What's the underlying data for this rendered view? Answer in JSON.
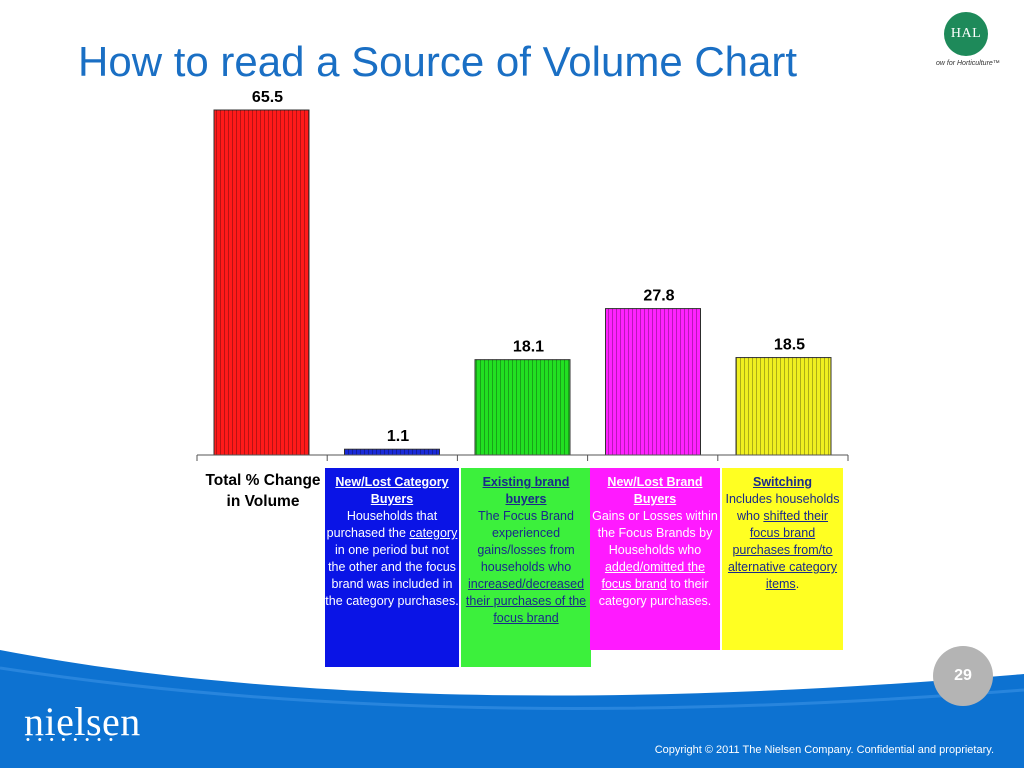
{
  "title": "How to read a Source of Volume Chart",
  "logo": {
    "name": "HAL",
    "tagline": "ow for Horticulture™",
    "color": "#1e8a5a"
  },
  "chart_data": {
    "type": "bar",
    "categories": [
      "Total % Change in Volume",
      "New/Lost Category Buyers",
      "Existing brand buyers",
      "New/Lost Brand Buyers",
      "Switching"
    ],
    "values": [
      65.5,
      1.1,
      18.1,
      27.8,
      18.5
    ],
    "value_labels": [
      "65.5",
      "1.1",
      "18.1",
      "27.8",
      "18.5"
    ],
    "colors": [
      "#ff1a1a",
      "#1a2ad8",
      "#22e022",
      "#ff22ff",
      "#f0f020"
    ],
    "ylim": [
      0,
      70
    ],
    "grid": false
  },
  "x_label_total": "Total % Change in Volume",
  "boxes": {
    "blue": {
      "heading": "New/Lost Category Buyers",
      "t1": "Households that purchased the ",
      "u1": "category",
      "t2": " in one period but not the other and the focus brand was included in the category purchases."
    },
    "green": {
      "heading": "Existing brand buyers",
      "t1": "The Focus Brand experienced gains/losses from households who ",
      "u1": "increased/decreased their purchases of the focus brand"
    },
    "magenta": {
      "heading": "New/Lost Brand Buyers",
      "t1": "Gains or Losses within the Focus Brands by Households who ",
      "u1": "added/omitted the focus brand",
      "t2": " to their category purchases."
    },
    "yellow": {
      "heading": "Switching",
      "t1": "Includes households who ",
      "u1": "shifted their focus brand purchases from/to alternative category items",
      "t2": "."
    }
  },
  "footer": {
    "brand": "nielsen",
    "dots": "••••••••",
    "page_number": "29",
    "copyright": "Copyright © 2011 The Nielsen Company. Confidential and proprietary."
  }
}
